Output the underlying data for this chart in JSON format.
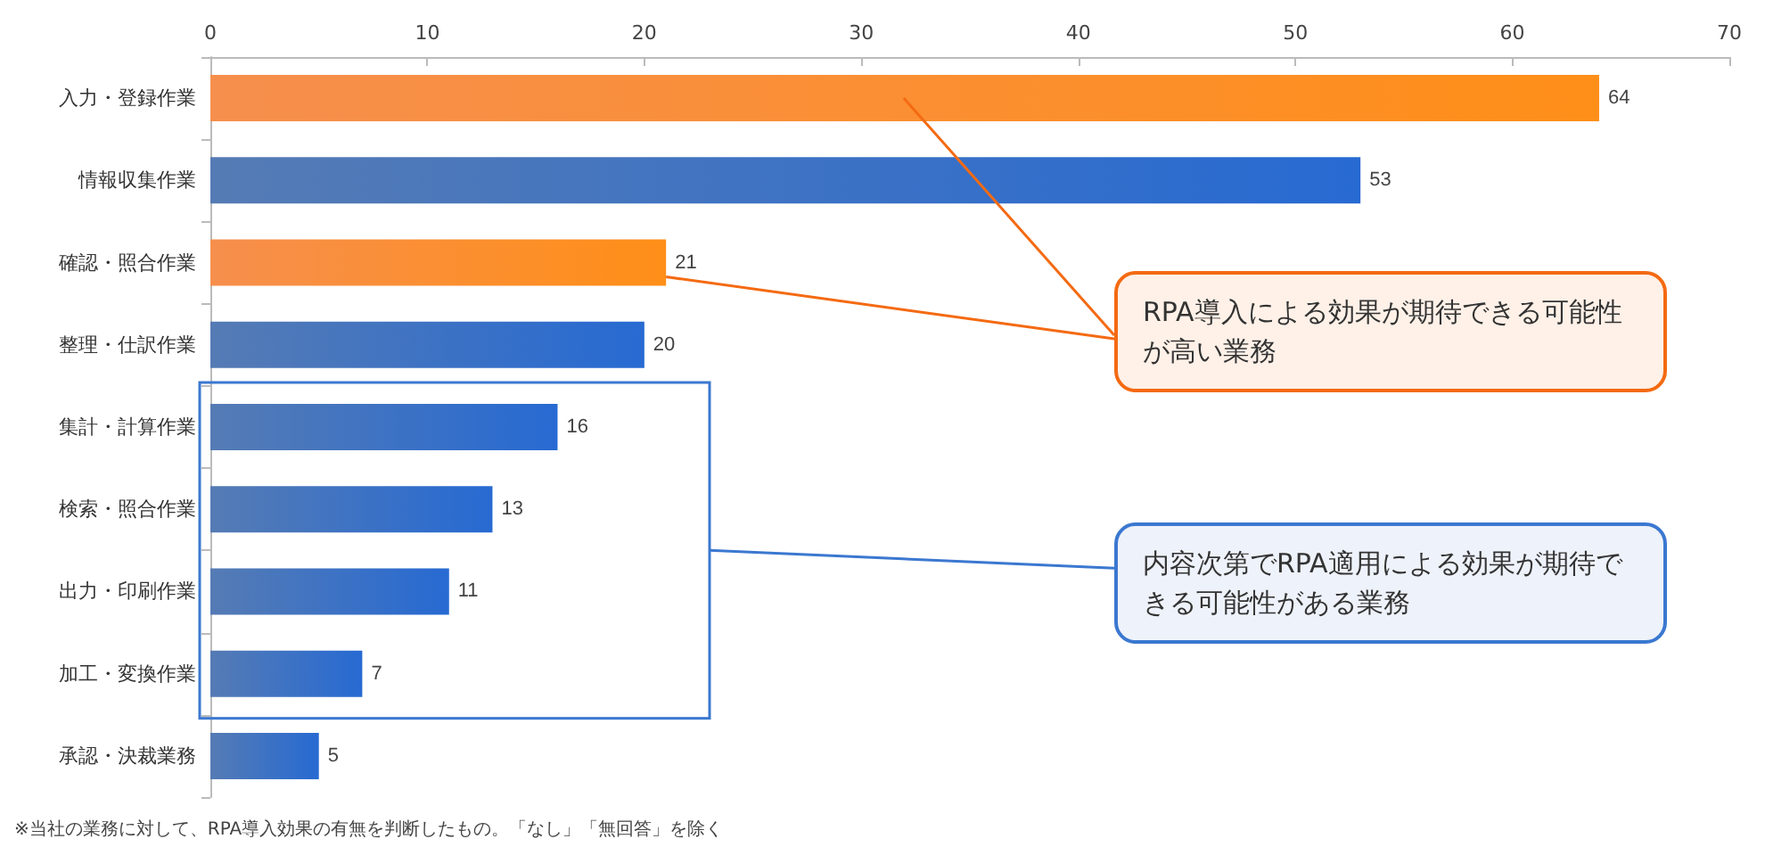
{
  "chart_data": {
    "type": "bar",
    "orientation": "horizontal",
    "categories": [
      "入力・登録作業",
      "情報収集作業",
      "確認・照合作業",
      "整理・仕訳作業",
      "集計・計算作業",
      "検索・照合作業",
      "出力・印刷作業",
      "加工・変換作業",
      "承認・決裁業務"
    ],
    "values": [
      64,
      53,
      21,
      20,
      16,
      13,
      11,
      7,
      5
    ],
    "colors": [
      "#f46a12",
      "#1d4f9c",
      "#f46a12",
      "#1d4f9c",
      "#1d4f9c",
      "#1d4f9c",
      "#1d4f9c",
      "#1d4f9c",
      "#1d4f9c"
    ],
    "xlim": [
      0,
      70
    ],
    "xticks": [
      0,
      10,
      20,
      30,
      40,
      50,
      60,
      70
    ],
    "data_labels": true,
    "grid": false,
    "annotations": [
      {
        "text": "RPA導入による効果が期待できる可能性が高い業務",
        "x": 21,
        "y": "確認・照合作業"
      },
      "内容次第でRPA適用による効果が期待できる可能性がある業務",
      "※当社の業務に対して、RPA導入効果の有無を判断したもの。「なし」「無回答」を除く"
    ]
  }
}
